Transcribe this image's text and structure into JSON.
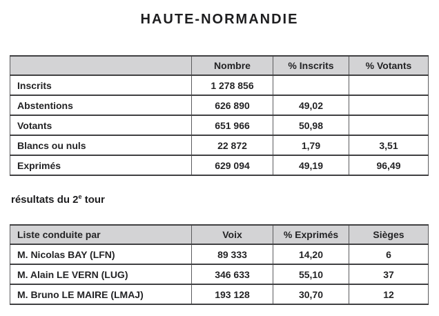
{
  "page": {
    "title": "HAUTE-NORMANDIE",
    "subtitle": {
      "prefix": "résultats du 2",
      "superscript": "e",
      "suffix": " tour"
    }
  },
  "colors": {
    "header_background": "#d3d3d5",
    "border_horizontal": "#3f3f41",
    "border_vertical": "#5a5a5c",
    "text": "#232325",
    "page_background": "#ffffff"
  },
  "participation_table": {
    "headers": [
      "",
      "Nombre",
      "% Inscrits",
      "% Votants"
    ],
    "rows": [
      {
        "label": "Inscrits",
        "nombre": "1 278 856",
        "pct_inscrits": "",
        "pct_votants": ""
      },
      {
        "label": "Abstentions",
        "nombre": "626 890",
        "pct_inscrits": "49,02",
        "pct_votants": ""
      },
      {
        "label": "Votants",
        "nombre": "651 966",
        "pct_inscrits": "50,98",
        "pct_votants": ""
      },
      {
        "label": "Blancs ou nuls",
        "nombre": "22 872",
        "pct_inscrits": "1,79",
        "pct_votants": "3,51"
      },
      {
        "label": "Exprimés",
        "nombre": "629 094",
        "pct_inscrits": "49,19",
        "pct_votants": "96,49"
      }
    ]
  },
  "results_table": {
    "headers": [
      "Liste conduite par",
      "Voix",
      "% Exprimés",
      "Sièges"
    ],
    "rows": [
      {
        "label": "M. Nicolas BAY  (LFN)",
        "voix": "89 333",
        "pct_exprimes": "14,20",
        "sieges": "6"
      },
      {
        "label": "M. Alain LE VERN  (LUG)",
        "voix": "346 633",
        "pct_exprimes": "55,10",
        "sieges": "37"
      },
      {
        "label": "M. Bruno LE MAIRE  (LMAJ)",
        "voix": "193 128",
        "pct_exprimes": "30,70",
        "sieges": "12"
      }
    ]
  }
}
